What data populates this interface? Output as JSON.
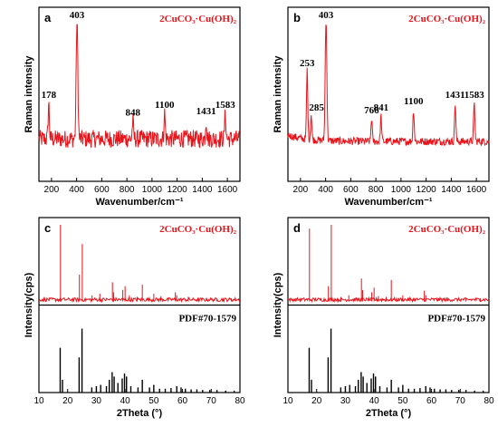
{
  "colors": {
    "sample": "#e8141b",
    "reference": "#000000"
  },
  "chart_data": [
    {
      "panel": "a",
      "type": "line",
      "xlabel": "Wavenumber/cm⁻¹",
      "ylabel": "Raman intensity",
      "xlim": [
        100,
        1700
      ],
      "ylim": [
        0,
        1
      ],
      "xticks": [
        200,
        400,
        600,
        800,
        1000,
        1200,
        1400,
        1600
      ],
      "legend": "2CuCO₃·Cu(OH)₂",
      "legend_position": "top-right",
      "peaks": [
        {
          "x": 178,
          "label": "178",
          "height": 0.28
        },
        {
          "x": 403,
          "label": "403",
          "height": 1.0
        },
        {
          "x": 848,
          "label": "848",
          "height": 0.14
        },
        {
          "x": 1100,
          "label": "1100",
          "height": 0.2
        },
        {
          "x": 1431,
          "label": "1431",
          "height": 0.15
        },
        {
          "x": 1583,
          "label": "1583",
          "height": 0.2
        }
      ],
      "baseline": 0.12,
      "noise": 0.07
    },
    {
      "panel": "b",
      "type": "line",
      "xlabel": "Wavenumber/cm⁻¹",
      "ylabel": "Raman intensity",
      "xlim": [
        100,
        1700
      ],
      "ylim": [
        0,
        1
      ],
      "xticks": [
        200,
        400,
        600,
        800,
        1000,
        1200,
        1400,
        1600
      ],
      "legend": "2CuCO₃·Cu(OH)₂",
      "legend_position": "top-right",
      "peaks": [
        {
          "x": 253,
          "label": "253",
          "height": 0.55
        },
        {
          "x": 285,
          "label": "285",
          "height": 0.2
        },
        {
          "x": 403,
          "label": "403",
          "height": 1.0
        },
        {
          "x": 766,
          "label": "766",
          "height": 0.18
        },
        {
          "x": 841,
          "label": "841",
          "height": 0.2
        },
        {
          "x": 1100,
          "label": "1100",
          "height": 0.25
        },
        {
          "x": 1431,
          "label": "1431",
          "height": 0.3
        },
        {
          "x": 1583,
          "label": "1583",
          "height": 0.3
        }
      ],
      "baseline": 0.1,
      "noise": 0.03
    },
    {
      "panel": "c",
      "type": "bar",
      "xlabel": "2Theta (°)",
      "ylabel": "Intensity(cps)",
      "xlim": [
        10,
        80
      ],
      "xticks": [
        10,
        20,
        30,
        40,
        50,
        60,
        70,
        80
      ],
      "legend": "2CuCO₃·Cu(OH)₂",
      "reference_label": "PDF#70-1579",
      "sample_peaks": [
        {
          "x": 17.5,
          "h": 1.0
        },
        {
          "x": 24.1,
          "h": 0.35
        },
        {
          "x": 25.1,
          "h": 0.75
        },
        {
          "x": 28.5,
          "h": 0.08
        },
        {
          "x": 31.2,
          "h": 0.1
        },
        {
          "x": 35.6,
          "h": 0.25
        },
        {
          "x": 36.0,
          "h": 0.12
        },
        {
          "x": 39.2,
          "h": 0.15
        },
        {
          "x": 40.0,
          "h": 0.2
        },
        {
          "x": 41.5,
          "h": 0.08
        },
        {
          "x": 44.2,
          "h": 0.06
        },
        {
          "x": 46.0,
          "h": 0.22
        },
        {
          "x": 50.0,
          "h": 0.1
        },
        {
          "x": 52.5,
          "h": 0.07
        },
        {
          "x": 57.5,
          "h": 0.12
        },
        {
          "x": 58.0,
          "h": 0.08
        },
        {
          "x": 62.0,
          "h": 0.06
        },
        {
          "x": 65.5,
          "h": 0.05
        },
        {
          "x": 72.0,
          "h": 0.04
        },
        {
          "x": 77.0,
          "h": 0.04
        }
      ],
      "reference_peaks": [
        {
          "x": 17.4,
          "h": 0.7
        },
        {
          "x": 18.2,
          "h": 0.2
        },
        {
          "x": 24.0,
          "h": 0.55
        },
        {
          "x": 25.0,
          "h": 1.0
        },
        {
          "x": 28.4,
          "h": 0.08
        },
        {
          "x": 30.0,
          "h": 0.1
        },
        {
          "x": 31.5,
          "h": 0.12
        },
        {
          "x": 33.5,
          "h": 0.1
        },
        {
          "x": 34.5,
          "h": 0.2
        },
        {
          "x": 35.5,
          "h": 0.32
        },
        {
          "x": 36.2,
          "h": 0.25
        },
        {
          "x": 37.5,
          "h": 0.15
        },
        {
          "x": 39.0,
          "h": 0.22
        },
        {
          "x": 39.8,
          "h": 0.3
        },
        {
          "x": 40.5,
          "h": 0.25
        },
        {
          "x": 42.0,
          "h": 0.1
        },
        {
          "x": 44.5,
          "h": 0.08
        },
        {
          "x": 46.0,
          "h": 0.2
        },
        {
          "x": 48.5,
          "h": 0.08
        },
        {
          "x": 50.0,
          "h": 0.12
        },
        {
          "x": 52.0,
          "h": 0.06
        },
        {
          "x": 54.0,
          "h": 0.06
        },
        {
          "x": 56.0,
          "h": 0.07
        },
        {
          "x": 58.0,
          "h": 0.1
        },
        {
          "x": 59.5,
          "h": 0.08
        },
        {
          "x": 61.0,
          "h": 0.06
        },
        {
          "x": 63.0,
          "h": 0.05
        },
        {
          "x": 65.0,
          "h": 0.05
        },
        {
          "x": 67.0,
          "h": 0.04
        },
        {
          "x": 69.5,
          "h": 0.04
        },
        {
          "x": 72.0,
          "h": 0.04
        },
        {
          "x": 75.0,
          "h": 0.03
        },
        {
          "x": 78.0,
          "h": 0.03
        }
      ]
    },
    {
      "panel": "d",
      "type": "bar",
      "xlabel": "2Theta (°)",
      "ylabel": "Intensity(cps)",
      "xlim": [
        10,
        80
      ],
      "xticks": [
        10,
        20,
        30,
        40,
        50,
        60,
        70,
        80
      ],
      "legend": "2CuCO₃·Cu(OH)₂",
      "reference_label": "PDF#70-1579",
      "sample_peaks": [
        {
          "x": 17.5,
          "h": 0.95
        },
        {
          "x": 24.1,
          "h": 0.2
        },
        {
          "x": 25.1,
          "h": 1.0
        },
        {
          "x": 28.5,
          "h": 0.06
        },
        {
          "x": 31.2,
          "h": 0.08
        },
        {
          "x": 35.6,
          "h": 0.3
        },
        {
          "x": 36.0,
          "h": 0.15
        },
        {
          "x": 39.2,
          "h": 0.12
        },
        {
          "x": 40.0,
          "h": 0.18
        },
        {
          "x": 41.5,
          "h": 0.07
        },
        {
          "x": 44.2,
          "h": 0.06
        },
        {
          "x": 46.0,
          "h": 0.28
        },
        {
          "x": 50.0,
          "h": 0.08
        },
        {
          "x": 52.5,
          "h": 0.06
        },
        {
          "x": 57.5,
          "h": 0.14
        },
        {
          "x": 58.0,
          "h": 0.08
        },
        {
          "x": 62.0,
          "h": 0.05
        },
        {
          "x": 65.5,
          "h": 0.05
        },
        {
          "x": 72.0,
          "h": 0.04
        },
        {
          "x": 77.0,
          "h": 0.04
        }
      ],
      "reference_peaks": [
        {
          "x": 17.4,
          "h": 0.7
        },
        {
          "x": 18.2,
          "h": 0.2
        },
        {
          "x": 24.0,
          "h": 0.55
        },
        {
          "x": 25.0,
          "h": 1.0
        },
        {
          "x": 28.4,
          "h": 0.08
        },
        {
          "x": 30.0,
          "h": 0.1
        },
        {
          "x": 31.5,
          "h": 0.12
        },
        {
          "x": 33.5,
          "h": 0.1
        },
        {
          "x": 34.5,
          "h": 0.2
        },
        {
          "x": 35.5,
          "h": 0.32
        },
        {
          "x": 36.2,
          "h": 0.25
        },
        {
          "x": 37.5,
          "h": 0.15
        },
        {
          "x": 39.0,
          "h": 0.22
        },
        {
          "x": 39.8,
          "h": 0.3
        },
        {
          "x": 40.5,
          "h": 0.25
        },
        {
          "x": 42.0,
          "h": 0.1
        },
        {
          "x": 44.5,
          "h": 0.08
        },
        {
          "x": 46.0,
          "h": 0.2
        },
        {
          "x": 48.5,
          "h": 0.08
        },
        {
          "x": 50.0,
          "h": 0.12
        },
        {
          "x": 52.0,
          "h": 0.06
        },
        {
          "x": 54.0,
          "h": 0.06
        },
        {
          "x": 56.0,
          "h": 0.07
        },
        {
          "x": 58.0,
          "h": 0.1
        },
        {
          "x": 59.5,
          "h": 0.08
        },
        {
          "x": 61.0,
          "h": 0.06
        },
        {
          "x": 63.0,
          "h": 0.05
        },
        {
          "x": 65.0,
          "h": 0.05
        },
        {
          "x": 67.0,
          "h": 0.04
        },
        {
          "x": 69.5,
          "h": 0.04
        },
        {
          "x": 72.0,
          "h": 0.04
        },
        {
          "x": 75.0,
          "h": 0.03
        },
        {
          "x": 78.0,
          "h": 0.03
        }
      ]
    }
  ]
}
